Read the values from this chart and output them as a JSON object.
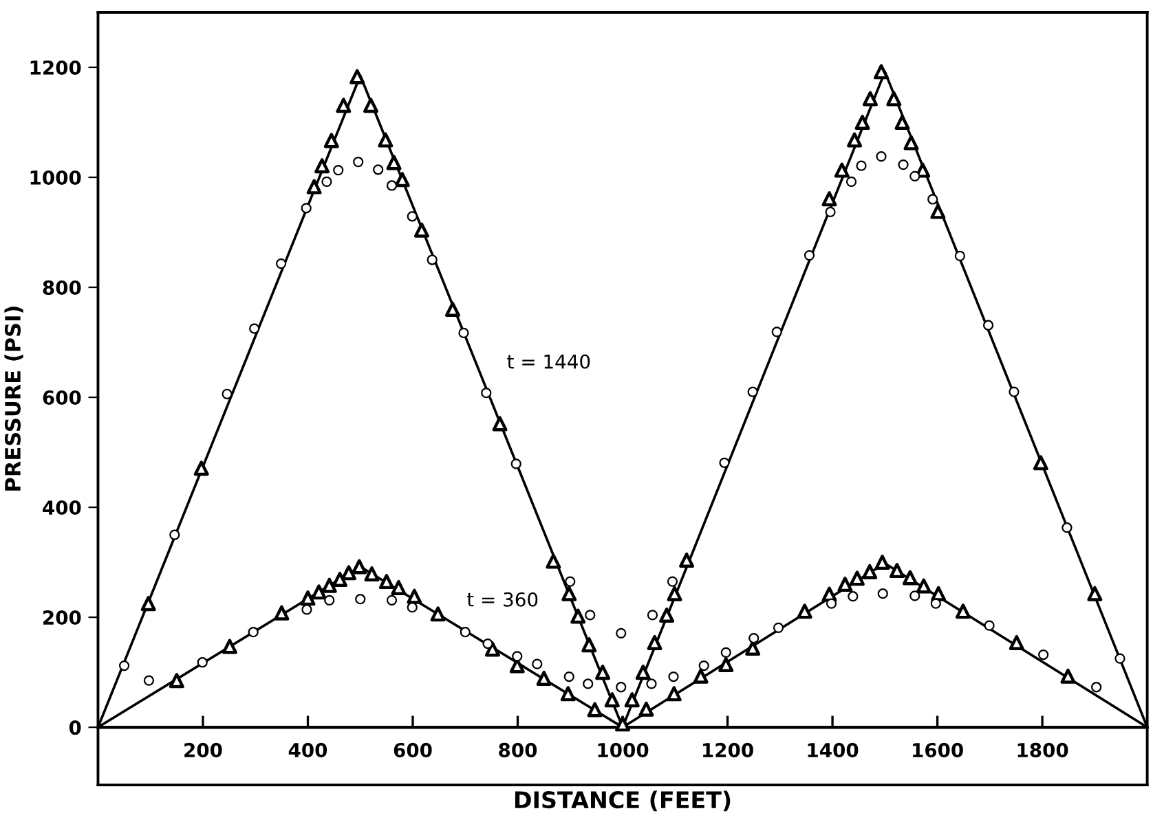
{
  "chart_data": {
    "type": "scatter",
    "xlabel": "DISTANCE (FEET)",
    "ylabel": "PRESSURE (PSI)",
    "xlim": [
      0,
      2000
    ],
    "ylim": [
      -105,
      1300
    ],
    "xticks": [
      200,
      400,
      600,
      800,
      1000,
      1200,
      1400,
      1600,
      1800
    ],
    "yticks": [
      0,
      200,
      400,
      600,
      800,
      1000,
      1200
    ],
    "grid": false,
    "legend": false,
    "series": [
      {
        "type": "line",
        "name": "t = 1440",
        "marker": "none",
        "line_style": "solid",
        "color": "#000000",
        "x": [
          0,
          500,
          1000,
          1500,
          2000
        ],
        "values": [
          0,
          1185,
          0,
          1192,
          0
        ]
      },
      {
        "marker": "triangle",
        "color": "#000000",
        "x": [
          96,
          197,
          412,
          427,
          445,
          468,
          494,
          520,
          548,
          564,
          580,
          617,
          676,
          766,
          868,
          898,
          915,
          936,
          962,
          980,
          1000,
          1018,
          1039,
          1061,
          1084,
          1099,
          1122,
          1394,
          1418,
          1442,
          1457,
          1472,
          1493,
          1517,
          1533,
          1550,
          1572,
          1601,
          1797,
          1900
        ],
        "values": [
          225,
          471,
          983,
          1021,
          1067,
          1131,
          1183,
          1131,
          1068,
          1027,
          996,
          904,
          760,
          552,
          302,
          243,
          202,
          150,
          100,
          50,
          6,
          50,
          100,
          154,
          204,
          243,
          304,
          961,
          1013,
          1068,
          1100,
          1143,
          1192,
          1143,
          1100,
          1063,
          1013,
          938,
          481,
          243
        ]
      },
      {
        "marker": "circle",
        "color": "#000000",
        "x": [
          50,
          146,
          246,
          298,
          349,
          397,
          436,
          458,
          496,
          534,
          560,
          599,
          637,
          697,
          740,
          797,
          900,
          938,
          997,
          1057,
          1095,
          1194,
          1248,
          1294,
          1356,
          1396,
          1436,
          1455,
          1493,
          1535,
          1557,
          1591,
          1643,
          1697,
          1746,
          1847,
          1948
        ],
        "values": [
          112,
          350,
          606,
          725,
          843,
          944,
          992,
          1013,
          1028,
          1014,
          985,
          929,
          850,
          717,
          608,
          479,
          265,
          204,
          171,
          204,
          265,
          481,
          610,
          719,
          858,
          937,
          992,
          1021,
          1038,
          1023,
          1002,
          960,
          857,
          731,
          610,
          363,
          125
        ]
      },
      {
        "type": "line",
        "name": "t = 360",
        "marker": "none",
        "line_style": "solid",
        "color": "#000000",
        "x": [
          0,
          500,
          1000,
          1500,
          2000
        ],
        "values": [
          0,
          292,
          0,
          298,
          0
        ]
      },
      {
        "marker": "triangle",
        "color": "#000000",
        "x": [
          150,
          251,
          350,
          400,
          421,
          441,
          461,
          478,
          498,
          522,
          550,
          573,
          603,
          648,
          752,
          799,
          850,
          896,
          947,
          1045,
          1098,
          1149,
          1197,
          1248,
          1347,
          1394,
          1424,
          1447,
          1471,
          1495,
          1523,
          1548,
          1574,
          1602,
          1649,
          1751,
          1849
        ],
        "values": [
          85,
          147,
          208,
          235,
          246,
          258,
          269,
          281,
          292,
          279,
          265,
          254,
          238,
          206,
          142,
          112,
          89,
          61,
          32,
          33,
          61,
          93,
          114,
          144,
          211,
          242,
          260,
          271,
          283,
          300,
          285,
          272,
          257,
          243,
          211,
          154,
          93
        ]
      },
      {
        "marker": "circle",
        "color": "#000000",
        "x": [
          97,
          199,
          296,
          398,
          441,
          500,
          560,
          599,
          700,
          743,
          799,
          837,
          898,
          934,
          997,
          1055,
          1097,
          1155,
          1197,
          1250,
          1297,
          1398,
          1439,
          1496,
          1557,
          1597,
          1699,
          1802,
          1903
        ],
        "values": [
          85,
          118,
          173,
          214,
          231,
          233,
          231,
          218,
          173,
          152,
          129,
          115,
          92,
          79,
          73,
          79,
          92,
          112,
          136,
          162,
          181,
          225,
          238,
          243,
          239,
          225,
          185,
          132,
          73
        ]
      }
    ]
  }
}
